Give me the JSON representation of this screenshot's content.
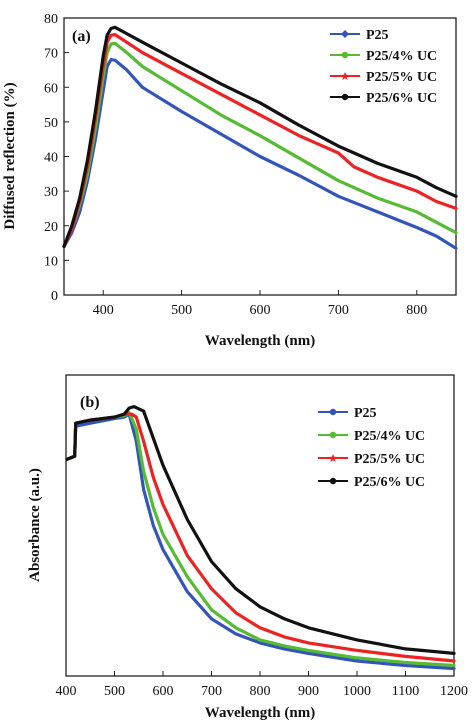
{
  "chart_data": [
    {
      "panel": "(a)",
      "type": "line",
      "xlabel": "Wavelength (nm)",
      "ylabel": "Diffused reflection (%)",
      "xlim": [
        350,
        850
      ],
      "ylim": [
        0,
        80
      ],
      "xticks": [
        400,
        500,
        600,
        700,
        800
      ],
      "yticks": [
        0,
        10,
        20,
        30,
        40,
        50,
        60,
        70,
        80
      ],
      "grid": false,
      "legend_position": "top-right",
      "series": [
        {
          "name": "P25",
          "color": "#3355bb",
          "marker": "diamond",
          "points": [
            [
              350,
              14
            ],
            [
              360,
              18
            ],
            [
              370,
              24
            ],
            [
              380,
              33
            ],
            [
              390,
              45
            ],
            [
              400,
              59
            ],
            [
              405,
              66
            ],
            [
              410,
              68
            ],
            [
              415,
              67.8
            ],
            [
              430,
              65
            ],
            [
              450,
              60
            ],
            [
              500,
              53
            ],
            [
              550,
              46.5
            ],
            [
              600,
              40
            ],
            [
              650,
              34.5
            ],
            [
              700,
              28.5
            ],
            [
              750,
              24
            ],
            [
              800,
              19.5
            ],
            [
              825,
              17
            ],
            [
              850,
              13.5
            ]
          ]
        },
        {
          "name": "P25/4% UC",
          "color": "#55bb33",
          "marker": "circle",
          "points": [
            [
              350,
              14
            ],
            [
              360,
              19
            ],
            [
              370,
              26
            ],
            [
              380,
              35
            ],
            [
              390,
              48
            ],
            [
              400,
              63
            ],
            [
              405,
              70
            ],
            [
              410,
              72.5
            ],
            [
              415,
              72.7
            ],
            [
              430,
              70
            ],
            [
              450,
              66
            ],
            [
              500,
              59
            ],
            [
              550,
              52
            ],
            [
              600,
              46
            ],
            [
              650,
              39.5
            ],
            [
              700,
              33
            ],
            [
              750,
              28
            ],
            [
              800,
              24
            ],
            [
              825,
              21
            ],
            [
              850,
              18
            ]
          ]
        },
        {
          "name": "P25/5% UC",
          "color": "#ee2222",
          "marker": "star",
          "points": [
            [
              350,
              14
            ],
            [
              360,
              19
            ],
            [
              370,
              27
            ],
            [
              380,
              37
            ],
            [
              390,
              51
            ],
            [
              400,
              66
            ],
            [
              405,
              73
            ],
            [
              410,
              75
            ],
            [
              415,
              75.2
            ],
            [
              430,
              73
            ],
            [
              450,
              70
            ],
            [
              500,
              64
            ],
            [
              550,
              58
            ],
            [
              600,
              52
            ],
            [
              650,
              46
            ],
            [
              700,
              41
            ],
            [
              720,
              37
            ],
            [
              750,
              34
            ],
            [
              800,
              30
            ],
            [
              825,
              27
            ],
            [
              850,
              25
            ]
          ]
        },
        {
          "name": "P25/6% UC",
          "color": "#111111",
          "marker": "circle",
          "points": [
            [
              350,
              14
            ],
            [
              360,
              20
            ],
            [
              370,
              28
            ],
            [
              380,
              39
            ],
            [
              390,
              53
            ],
            [
              400,
              69
            ],
            [
              405,
              75
            ],
            [
              410,
              77
            ],
            [
              415,
              77.3
            ],
            [
              430,
              75.5
            ],
            [
              450,
              73
            ],
            [
              500,
              67
            ],
            [
              550,
              61
            ],
            [
              600,
              55.5
            ],
            [
              650,
              49
            ],
            [
              700,
              43
            ],
            [
              720,
              41
            ],
            [
              750,
              38
            ],
            [
              800,
              34
            ],
            [
              825,
              31
            ],
            [
              850,
              28.5
            ]
          ]
        }
      ]
    },
    {
      "panel": "(b)",
      "type": "line",
      "xlabel": "Wavelength (nm)",
      "ylabel": "Absorbance (a.u.)",
      "xlim": [
        400,
        1200
      ],
      "ylim": [
        0,
        1
      ],
      "xticks": [
        400,
        500,
        600,
        700,
        800,
        900,
        1000,
        1100,
        1200
      ],
      "yticks": [],
      "grid": false,
      "legend_position": "top-right",
      "series": [
        {
          "name": "P25",
          "color": "#3355bb",
          "marker": "circle",
          "points": [
            [
              402,
              0.72
            ],
            [
              418,
              0.73
            ],
            [
              420,
              0.83
            ],
            [
              450,
              0.84
            ],
            [
              500,
              0.855
            ],
            [
              520,
              0.86
            ],
            [
              530,
              0.87
            ],
            [
              545,
              0.78
            ],
            [
              560,
              0.62
            ],
            [
              580,
              0.5
            ],
            [
              600,
              0.42
            ],
            [
              650,
              0.28
            ],
            [
              700,
              0.19
            ],
            [
              750,
              0.14
            ],
            [
              800,
              0.11
            ],
            [
              850,
              0.09
            ],
            [
              900,
              0.075
            ],
            [
              1000,
              0.05
            ],
            [
              1100,
              0.035
            ],
            [
              1200,
              0.025
            ]
          ]
        },
        {
          "name": "P25/4% UC",
          "color": "#55bb33",
          "marker": "circle",
          "points": [
            [
              402,
              0.72
            ],
            [
              418,
              0.73
            ],
            [
              420,
              0.84
            ],
            [
              450,
              0.85
            ],
            [
              500,
              0.86
            ],
            [
              520,
              0.865
            ],
            [
              530,
              0.875
            ],
            [
              545,
              0.82
            ],
            [
              560,
              0.68
            ],
            [
              580,
              0.56
            ],
            [
              600,
              0.47
            ],
            [
              650,
              0.33
            ],
            [
              700,
              0.22
            ],
            [
              750,
              0.16
            ],
            [
              800,
              0.12
            ],
            [
              850,
              0.1
            ],
            [
              900,
              0.085
            ],
            [
              1000,
              0.06
            ],
            [
              1100,
              0.045
            ],
            [
              1200,
              0.035
            ]
          ]
        },
        {
          "name": "P25/5% UC",
          "color": "#ee2222",
          "marker": "star",
          "points": [
            [
              402,
              0.72
            ],
            [
              418,
              0.73
            ],
            [
              420,
              0.84
            ],
            [
              450,
              0.85
            ],
            [
              500,
              0.86
            ],
            [
              520,
              0.87
            ],
            [
              535,
              0.87
            ],
            [
              545,
              0.86
            ],
            [
              560,
              0.78
            ],
            [
              580,
              0.66
            ],
            [
              600,
              0.57
            ],
            [
              650,
              0.4
            ],
            [
              700,
              0.29
            ],
            [
              750,
              0.21
            ],
            [
              800,
              0.16
            ],
            [
              850,
              0.13
            ],
            [
              900,
              0.11
            ],
            [
              1000,
              0.085
            ],
            [
              1100,
              0.065
            ],
            [
              1200,
              0.05
            ]
          ]
        },
        {
          "name": "P25/6% UC",
          "color": "#111111",
          "marker": "circle",
          "points": [
            [
              402,
              0.72
            ],
            [
              418,
              0.73
            ],
            [
              420,
              0.84
            ],
            [
              450,
              0.85
            ],
            [
              500,
              0.86
            ],
            [
              520,
              0.87
            ],
            [
              530,
              0.89
            ],
            [
              540,
              0.895
            ],
            [
              560,
              0.88
            ],
            [
              580,
              0.79
            ],
            [
              600,
              0.7
            ],
            [
              650,
              0.52
            ],
            [
              700,
              0.38
            ],
            [
              750,
              0.29
            ],
            [
              800,
              0.23
            ],
            [
              850,
              0.19
            ],
            [
              900,
              0.16
            ],
            [
              1000,
              0.12
            ],
            [
              1100,
              0.09
            ],
            [
              1200,
              0.075
            ]
          ]
        }
      ]
    }
  ]
}
